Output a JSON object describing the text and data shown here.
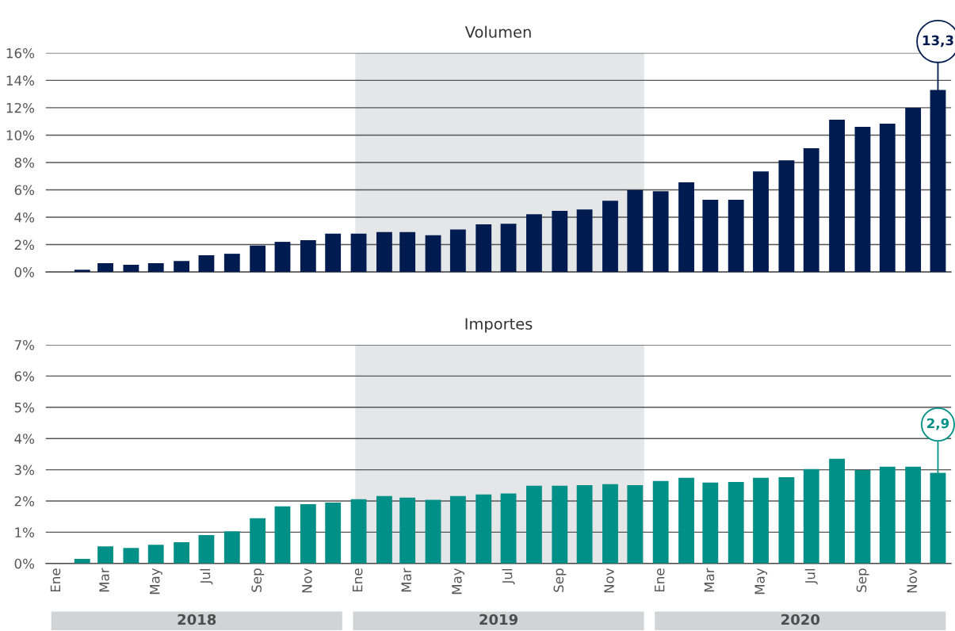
{
  "chart_data": [
    {
      "type": "bar",
      "title": "Volumen",
      "x": [
        "2018-02",
        "2018-03",
        "2018-04",
        "2018-05",
        "2018-06",
        "2018-07",
        "2018-08",
        "2018-09",
        "2018-10",
        "2018-11",
        "2018-12",
        "2019-01",
        "2019-02",
        "2019-03",
        "2019-04",
        "2019-05",
        "2019-06",
        "2019-07",
        "2019-08",
        "2019-09",
        "2019-10",
        "2019-11",
        "2019-12",
        "2020-01",
        "2020-02",
        "2020-03",
        "2020-04",
        "2020-05",
        "2020-06",
        "2020-07",
        "2020-08",
        "2020-09",
        "2020-10",
        "2020-11",
        "2020-12"
      ],
      "series": [
        {
          "color": "#001b50",
          "values": [
            0.16,
            0.64,
            0.53,
            0.64,
            0.8,
            1.22,
            1.33,
            1.93,
            2.2,
            2.32,
            2.8,
            2.8,
            2.92,
            2.92,
            2.69,
            3.1,
            3.48,
            3.52,
            4.22,
            4.46,
            4.57,
            5.2,
            5.99,
            5.9,
            6.55,
            5.27,
            5.27,
            7.35,
            8.16,
            9.04,
            11.12,
            10.6,
            10.83,
            12.0,
            13.3
          ],
          "value_labels": [
            null,
            null,
            null,
            null,
            null,
            null,
            null,
            null,
            null,
            null,
            null,
            null,
            null,
            null,
            null,
            null,
            null,
            null,
            null,
            null,
            null,
            null,
            null,
            null,
            null,
            null,
            null,
            null,
            null,
            null,
            null,
            null,
            null,
            null,
            "13,3"
          ]
        }
      ],
      "xlim": [
        "2017-12-19",
        "2020-12-17"
      ],
      "ylim": [
        0,
        16
      ],
      "yticks": [
        {
          "value": 0,
          "label": "0%"
        },
        {
          "value": 2,
          "label": "2%"
        },
        {
          "value": 4,
          "label": "4%"
        },
        {
          "value": 6,
          "label": "6%"
        },
        {
          "value": 8,
          "label": "8%"
        },
        {
          "value": 10,
          "label": "10%"
        },
        {
          "value": 12,
          "label": "12%"
        },
        {
          "value": 14,
          "label": "14%"
        },
        {
          "value": 16,
          "label": "16%"
        }
      ],
      "bands": [
        {
          "axis": "x",
          "from": "2018-12-28",
          "to": "2019-12-12",
          "color": "#e5e6e8"
        }
      ],
      "grid": "y",
      "tick_labels": "y"
    },
    {
      "type": "bar",
      "title": "Importes",
      "x": [
        "2018-02",
        "2018-03",
        "2018-04",
        "2018-05",
        "2018-06",
        "2018-07",
        "2018-08",
        "2018-09",
        "2018-10",
        "2018-11",
        "2018-12",
        "2019-01",
        "2019-02",
        "2019-03",
        "2019-04",
        "2019-05",
        "2019-06",
        "2019-07",
        "2019-08",
        "2019-09",
        "2019-10",
        "2019-11",
        "2019-12",
        "2020-01",
        "2020-02",
        "2020-03",
        "2020-04",
        "2020-05",
        "2020-06",
        "2020-07",
        "2020-08",
        "2020-09",
        "2020-10",
        "2020-11",
        "2020-12"
      ],
      "series": [
        {
          "color": "#009087",
          "values": [
            0.15,
            0.55,
            0.5,
            0.6,
            0.68,
            0.91,
            1.03,
            1.45,
            1.83,
            1.9,
            1.95,
            2.06,
            2.16,
            2.11,
            2.04,
            2.16,
            2.21,
            2.24,
            2.49,
            2.49,
            2.51,
            2.54,
            2.51,
            2.64,
            2.74,
            2.59,
            2.61,
            2.74,
            2.76,
            3.02,
            3.35,
            2.99,
            3.1,
            3.1,
            2.9
          ],
          "value_labels": [
            null,
            null,
            null,
            null,
            null,
            null,
            null,
            null,
            null,
            null,
            null,
            null,
            null,
            null,
            null,
            null,
            null,
            null,
            null,
            null,
            null,
            null,
            null,
            null,
            null,
            null,
            null,
            null,
            null,
            null,
            null,
            null,
            null,
            null,
            "2,9"
          ]
        }
      ],
      "xlim": [
        "2017-12-19",
        "2020-12-17"
      ],
      "xticks": [
        {
          "value": "2018-01",
          "label": "Ene"
        },
        {
          "value": "2018-03",
          "label": "Mar"
        },
        {
          "value": "2018-05",
          "label": "May"
        },
        {
          "value": "2018-07",
          "label": "Jul"
        },
        {
          "value": "2018-09",
          "label": "Sep"
        },
        {
          "value": "2018-11",
          "label": "Nov"
        },
        {
          "value": "2019-01",
          "label": "Ene"
        },
        {
          "value": "2019-03",
          "label": "Mar"
        },
        {
          "value": "2019-05",
          "label": "May"
        },
        {
          "value": "2019-07",
          "label": "Jul"
        },
        {
          "value": "2019-09",
          "label": "Sep"
        },
        {
          "value": "2019-11",
          "label": "Nov"
        },
        {
          "value": "2020-01",
          "label": "Ene"
        },
        {
          "value": "2020-03",
          "label": "Mar"
        },
        {
          "value": "2020-05",
          "label": "May"
        },
        {
          "value": "2020-07",
          "label": "Jul"
        },
        {
          "value": "2020-09",
          "label": "Sep"
        },
        {
          "value": "2020-11",
          "label": "Nov"
        }
      ],
      "ylim": [
        0,
        7
      ],
      "yticks": [
        {
          "value": 0,
          "label": "0%"
        },
        {
          "value": 1,
          "label": "1%"
        },
        {
          "value": 2,
          "label": "2%"
        },
        {
          "value": 3,
          "label": "3%"
        },
        {
          "value": 4,
          "label": "4%"
        },
        {
          "value": 5,
          "label": "5%"
        },
        {
          "value": 6,
          "label": "6%"
        },
        {
          "value": 7,
          "label": "7%"
        }
      ],
      "bands": [
        {
          "axis": "x",
          "from": "2018-12-28",
          "to": "2019-12-12",
          "color": "#e5e6e8"
        }
      ],
      "annotations": [
        "2018",
        "2019",
        "2020"
      ],
      "grid": "y"
    }
  ]
}
